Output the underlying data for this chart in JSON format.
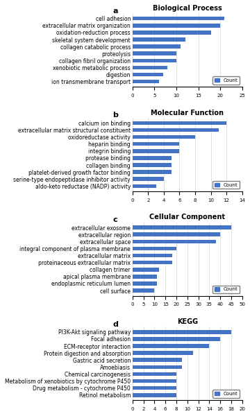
{
  "panels": [
    {
      "label": "a",
      "title": "Biological Process",
      "categories": [
        "cell adhesion",
        "extracellular matrix organization",
        "oxidation-reduction process",
        "skeletal system development",
        "collagen catabolic process",
        "proteolysis",
        "collagen fibril organization",
        "xenobiotic metabolic process",
        "digestion",
        "ion transmembrane transport"
      ],
      "values": [
        21,
        20,
        18,
        12,
        11,
        10,
        10,
        8,
        7,
        6
      ],
      "xlim": [
        0,
        25
      ],
      "xticks": [
        0,
        5,
        10,
        15,
        20,
        25
      ]
    },
    {
      "label": "b",
      "title": "Molecular Function",
      "categories": [
        "calcium ion binding",
        "extracellular matrix structural constituent",
        "oxidoreductase activity",
        "heparin binding",
        "integrin binding",
        "protease binding",
        "collagen binding",
        "platelet-derived growth factor binding",
        "serine-type endopeptidase inhibitor activity",
        "aldo-keto reductase (NADP) activity"
      ],
      "values": [
        12,
        11,
        8,
        6,
        6,
        5,
        5,
        5,
        4,
        3
      ],
      "xlim": [
        0,
        14
      ],
      "xticks": [
        0,
        2,
        4,
        6,
        8,
        10,
        12,
        14
      ]
    },
    {
      "label": "c",
      "title": "Cellular Component",
      "categories": [
        "extracellular exosome",
        "extracellular region",
        "extracellular space",
        "integral component of plasma membrane",
        "extracellular matrix",
        "proteinaceous extracellular matrix",
        "collagen trimer",
        "apical plasma membrane",
        "endoplasmic reticulum lumen",
        "cell surface"
      ],
      "values": [
        45,
        40,
        38,
        20,
        18,
        18,
        12,
        11,
        11,
        10
      ],
      "xlim": [
        0,
        50
      ],
      "xticks": [
        0,
        5,
        10,
        15,
        20,
        25,
        30,
        35,
        40,
        45,
        50
      ]
    },
    {
      "label": "d",
      "title": "KEGG",
      "categories": [
        "PI3K-Akt signaling pathway",
        "Focal adhesion",
        "ECM-receptor interaction",
        "Protein digestion and absorption",
        "Gastric acid secretion",
        "Amoebiasis",
        "Chemical carcinogenesis",
        "Metabolism of xenobiotics by cytochrome P450",
        "Drug metabolism - cytochrome P450",
        "Retinol metabolism"
      ],
      "values": [
        18,
        16,
        14,
        11,
        9,
        9,
        8,
        8,
        8,
        8
      ],
      "xlim": [
        0,
        20
      ],
      "xticks": [
        0,
        2,
        4,
        6,
        8,
        10,
        12,
        14,
        16,
        18,
        20
      ]
    }
  ],
  "bar_color": "#4472C4",
  "legend_label": "Count",
  "bar_height": 0.55,
  "title_fontsize": 7,
  "label_fontsize": 5.5,
  "tick_fontsize": 5,
  "panel_label_fontsize": 8
}
